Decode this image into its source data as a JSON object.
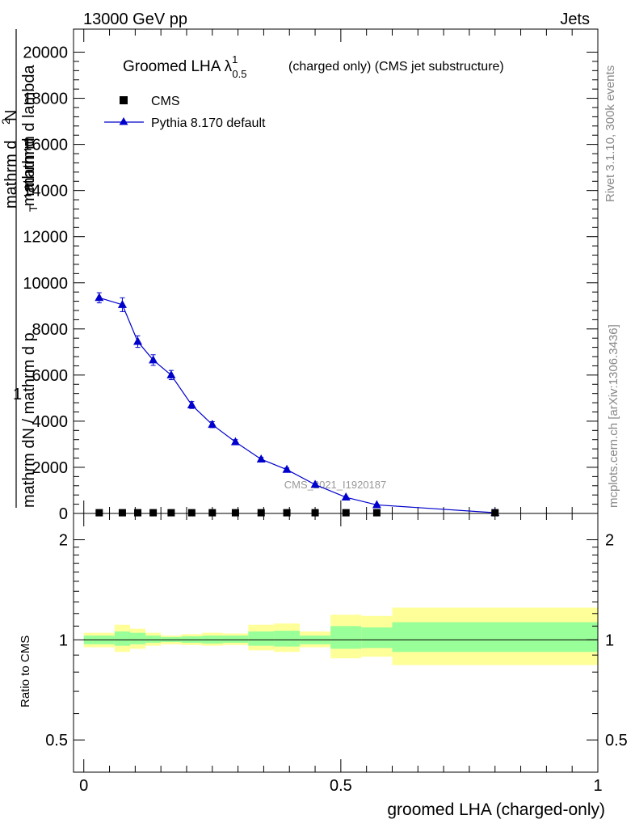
{
  "header": {
    "left": "13000 GeV pp",
    "right": "Jets"
  },
  "side": {
    "rivet": "Rivet 3.1.10,  300k events",
    "mcplots": "mcplots.cern.ch [arXiv:1306.3436]"
  },
  "watermark": "CMS_2021_I1920187",
  "colors": {
    "mc": "#0000cc",
    "data": "#000000",
    "band_inner": "#99ff99",
    "band_outer": "#ffff99"
  },
  "chart_data": [
    {
      "type": "line",
      "title_main": "Groomed LHA λ",
      "title_sup": "1",
      "title_sub": "0.5",
      "title_rest": "(charged only) (CMS jet substructure)",
      "ylabel_num": "1",
      "ylabel_den": "mathrm dN / mathrm d p",
      "ylabel_t": "T",
      "ylabel_den2": "mathrm d",
      "ylabel_over": "mathrm d",
      "ylabel_top2": "N",
      "ylabel_tail": "mathrm d lambda",
      "ylabel_sup": "2",
      "ylim": [
        0,
        21000
      ],
      "xlim": [
        -0.02,
        1.0
      ],
      "yticks": [
        0,
        2000,
        4000,
        6000,
        8000,
        10000,
        12000,
        14000,
        16000,
        18000,
        20000
      ],
      "ytick_labels": [
        "0",
        "2000",
        "4000",
        "6000",
        "8000",
        "10000",
        "12000",
        "14000",
        "16000",
        "18000",
        "20000"
      ],
      "legend": {
        "data": "CMS",
        "mc": "Pythia 8.170 default",
        "position": "top-left"
      },
      "data_x": [
        0.03,
        0.075,
        0.105,
        0.135,
        0.17,
        0.21,
        0.25,
        0.295,
        0.345,
        0.395,
        0.45,
        0.51,
        0.57,
        0.8
      ],
      "data_y": [
        30,
        30,
        30,
        30,
        30,
        30,
        30,
        30,
        30,
        30,
        30,
        30,
        30,
        30
      ],
      "mc_x": [
        0.03,
        0.075,
        0.105,
        0.135,
        0.17,
        0.21,
        0.25,
        0.295,
        0.345,
        0.395,
        0.45,
        0.51,
        0.57,
        0.8
      ],
      "mc_y": [
        9350,
        9050,
        7450,
        6650,
        6000,
        4700,
        3850,
        3100,
        2350,
        1900,
        1250,
        700,
        370,
        30
      ],
      "mc_err": [
        220,
        300,
        250,
        230,
        200,
        150,
        130,
        100,
        80,
        70,
        50,
        35,
        20,
        10
      ]
    },
    {
      "type": "area",
      "ylabel": "Ratio to CMS",
      "ylog": true,
      "ylim": [
        0.4,
        2.4
      ],
      "xlim": [
        -0.02,
        1.0
      ],
      "yticks": [
        0.5,
        1,
        2
      ],
      "ytick_labels": [
        "0.5",
        "1",
        "2"
      ],
      "xticks": [
        0,
        0.5,
        1
      ],
      "xtick_labels": [
        "0",
        "0.5",
        "1"
      ],
      "xlabel": "groomed LHA (charged-only)",
      "reference": 1,
      "bins": [
        {
          "lo": 0.0,
          "hi": 0.06,
          "inner": [
            0.97,
            1.03
          ],
          "outer": [
            0.95,
            1.05
          ]
        },
        {
          "lo": 0.06,
          "hi": 0.09,
          "inner": [
            0.96,
            1.06
          ],
          "outer": [
            0.92,
            1.11
          ]
        },
        {
          "lo": 0.09,
          "hi": 0.12,
          "inner": [
            0.97,
            1.05
          ],
          "outer": [
            0.94,
            1.08
          ]
        },
        {
          "lo": 0.12,
          "hi": 0.15,
          "inner": [
            0.98,
            1.03
          ],
          "outer": [
            0.96,
            1.05
          ]
        },
        {
          "lo": 0.15,
          "hi": 0.19,
          "inner": [
            0.985,
            1.02
          ],
          "outer": [
            0.97,
            1.03
          ]
        },
        {
          "lo": 0.19,
          "hi": 0.23,
          "inner": [
            0.98,
            1.025
          ],
          "outer": [
            0.965,
            1.04
          ]
        },
        {
          "lo": 0.23,
          "hi": 0.27,
          "inner": [
            0.975,
            1.03
          ],
          "outer": [
            0.96,
            1.05
          ]
        },
        {
          "lo": 0.27,
          "hi": 0.32,
          "inner": [
            0.98,
            1.03
          ],
          "outer": [
            0.965,
            1.045
          ]
        },
        {
          "lo": 0.32,
          "hi": 0.37,
          "inner": [
            0.96,
            1.06
          ],
          "outer": [
            0.93,
            1.11
          ]
        },
        {
          "lo": 0.37,
          "hi": 0.42,
          "inner": [
            0.955,
            1.065
          ],
          "outer": [
            0.92,
            1.12
          ]
        },
        {
          "lo": 0.42,
          "hi": 0.48,
          "inner": [
            0.97,
            1.03
          ],
          "outer": [
            0.95,
            1.06
          ]
        },
        {
          "lo": 0.48,
          "hi": 0.54,
          "inner": [
            0.94,
            1.1
          ],
          "outer": [
            0.88,
            1.19
          ]
        },
        {
          "lo": 0.54,
          "hi": 0.6,
          "inner": [
            0.945,
            1.09
          ],
          "outer": [
            0.89,
            1.18
          ]
        },
        {
          "lo": 0.6,
          "hi": 1.0,
          "inner": [
            0.92,
            1.13
          ],
          "outer": [
            0.84,
            1.25
          ]
        }
      ]
    }
  ]
}
